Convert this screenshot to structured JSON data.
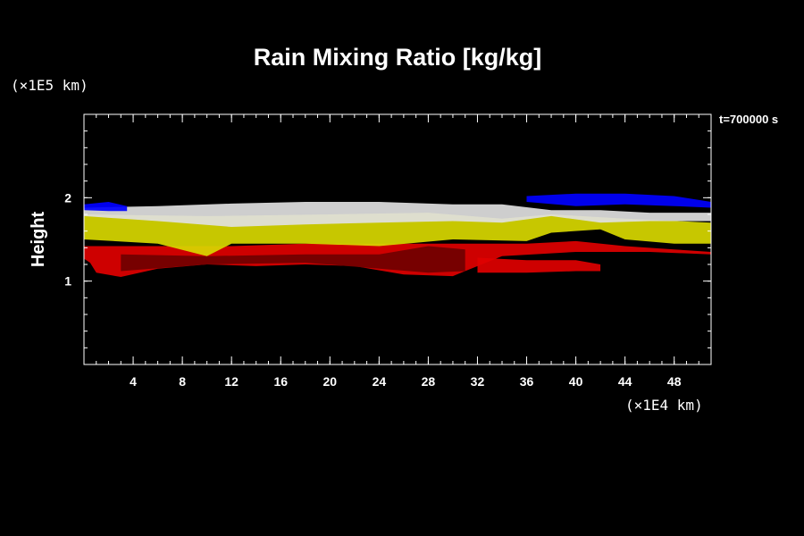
{
  "chart_data": {
    "type": "heatmap",
    "title": "Rain Mixing Ratio [kg/kg]",
    "ylabel": "Height",
    "xlabel": "",
    "y_unit": "(×1E5 km)",
    "x_unit": "(×1E4 km)",
    "time_label": "t=700000 s",
    "xlim": [
      0,
      51
    ],
    "ylim": [
      0,
      3
    ],
    "x_ticks": [
      4,
      8,
      12,
      16,
      20,
      24,
      28,
      32,
      36,
      40,
      44,
      48
    ],
    "y_ticks": [
      1,
      2
    ],
    "x_minor_step": 1,
    "y_minor_step": 0.2,
    "colors": {
      "background": "#000000",
      "blue": "#0000ff",
      "white": "#e0e0e0",
      "yellow": "#d8d800",
      "red": "#e00000",
      "dark_red": "#700000"
    },
    "layers": [
      {
        "color": "red",
        "top": [
          [
            0,
            1.42
          ],
          [
            6,
            1.42
          ],
          [
            12,
            1.42
          ],
          [
            18,
            1.45
          ],
          [
            24,
            1.45
          ],
          [
            30,
            1.45
          ],
          [
            36,
            1.45
          ],
          [
            40,
            1.48
          ],
          [
            44,
            1.42
          ],
          [
            48,
            1.38
          ],
          [
            51,
            1.35
          ]
        ],
        "bottom": [
          [
            0,
            1.27
          ],
          [
            0.5,
            1.22
          ],
          [
            1,
            1.1
          ],
          [
            3,
            1.05
          ],
          [
            6,
            1.15
          ],
          [
            10,
            1.2
          ],
          [
            14,
            1.18
          ],
          [
            18,
            1.2
          ],
          [
            22,
            1.18
          ],
          [
            26,
            1.08
          ],
          [
            30,
            1.06
          ],
          [
            32,
            1.18
          ],
          [
            34,
            1.3
          ],
          [
            40,
            1.35
          ],
          [
            46,
            1.35
          ],
          [
            51,
            1.32
          ]
        ]
      },
      {
        "color": "red",
        "top": [
          [
            32,
            1.28
          ],
          [
            36,
            1.25
          ],
          [
            40,
            1.25
          ],
          [
            42,
            1.2
          ]
        ],
        "bottom": [
          [
            32,
            1.1
          ],
          [
            36,
            1.1
          ],
          [
            40,
            1.12
          ],
          [
            42,
            1.12
          ]
        ]
      },
      {
        "color": "dark_red",
        "top": [
          [
            3,
            1.32
          ],
          [
            10,
            1.3
          ],
          [
            18,
            1.32
          ],
          [
            24,
            1.32
          ],
          [
            28,
            1.42
          ],
          [
            31,
            1.38
          ]
        ],
        "bottom": [
          [
            3,
            1.12
          ],
          [
            10,
            1.2
          ],
          [
            18,
            1.22
          ],
          [
            24,
            1.15
          ],
          [
            28,
            1.1
          ],
          [
            31,
            1.12
          ]
        ]
      },
      {
        "color": "yellow",
        "top": [
          [
            0,
            1.8
          ],
          [
            10,
            1.78
          ],
          [
            20,
            1.8
          ],
          [
            28,
            1.82
          ],
          [
            34,
            1.75
          ],
          [
            38,
            1.8
          ],
          [
            44,
            1.75
          ],
          [
            51,
            1.7
          ]
        ],
        "bottom": [
          [
            0,
            1.5
          ],
          [
            6,
            1.45
          ],
          [
            10,
            1.3
          ],
          [
            12,
            1.45
          ],
          [
            18,
            1.45
          ],
          [
            24,
            1.42
          ],
          [
            30,
            1.5
          ],
          [
            36,
            1.48
          ],
          [
            38,
            1.58
          ],
          [
            42,
            1.62
          ],
          [
            44,
            1.5
          ],
          [
            48,
            1.45
          ],
          [
            51,
            1.45
          ]
        ]
      },
      {
        "color": "white",
        "top": [
          [
            0,
            1.88
          ],
          [
            6,
            1.9
          ],
          [
            12,
            1.93
          ],
          [
            18,
            1.95
          ],
          [
            24,
            1.95
          ],
          [
            30,
            1.92
          ],
          [
            34,
            1.92
          ],
          [
            38,
            1.85
          ],
          [
            42,
            1.85
          ],
          [
            46,
            1.82
          ],
          [
            51,
            1.82
          ]
        ],
        "bottom": [
          [
            0,
            1.78
          ],
          [
            6,
            1.72
          ],
          [
            12,
            1.65
          ],
          [
            18,
            1.68
          ],
          [
            24,
            1.7
          ],
          [
            30,
            1.72
          ],
          [
            34,
            1.7
          ],
          [
            38,
            1.78
          ],
          [
            42,
            1.7
          ],
          [
            46,
            1.72
          ],
          [
            51,
            1.72
          ]
        ]
      },
      {
        "color": "blue",
        "top": [
          [
            0,
            1.92
          ],
          [
            2,
            1.95
          ],
          [
            3.5,
            1.9
          ]
        ],
        "bottom": [
          [
            0,
            1.85
          ],
          [
            2,
            1.84
          ],
          [
            3.5,
            1.84
          ]
        ]
      },
      {
        "color": "blue",
        "top": [
          [
            36,
            2.02
          ],
          [
            40,
            2.05
          ],
          [
            44,
            2.05
          ],
          [
            48,
            2.02
          ],
          [
            51,
            1.95
          ]
        ],
        "bottom": [
          [
            36,
            1.95
          ],
          [
            40,
            1.9
          ],
          [
            44,
            1.92
          ],
          [
            48,
            1.9
          ],
          [
            51,
            1.88
          ]
        ]
      }
    ]
  }
}
